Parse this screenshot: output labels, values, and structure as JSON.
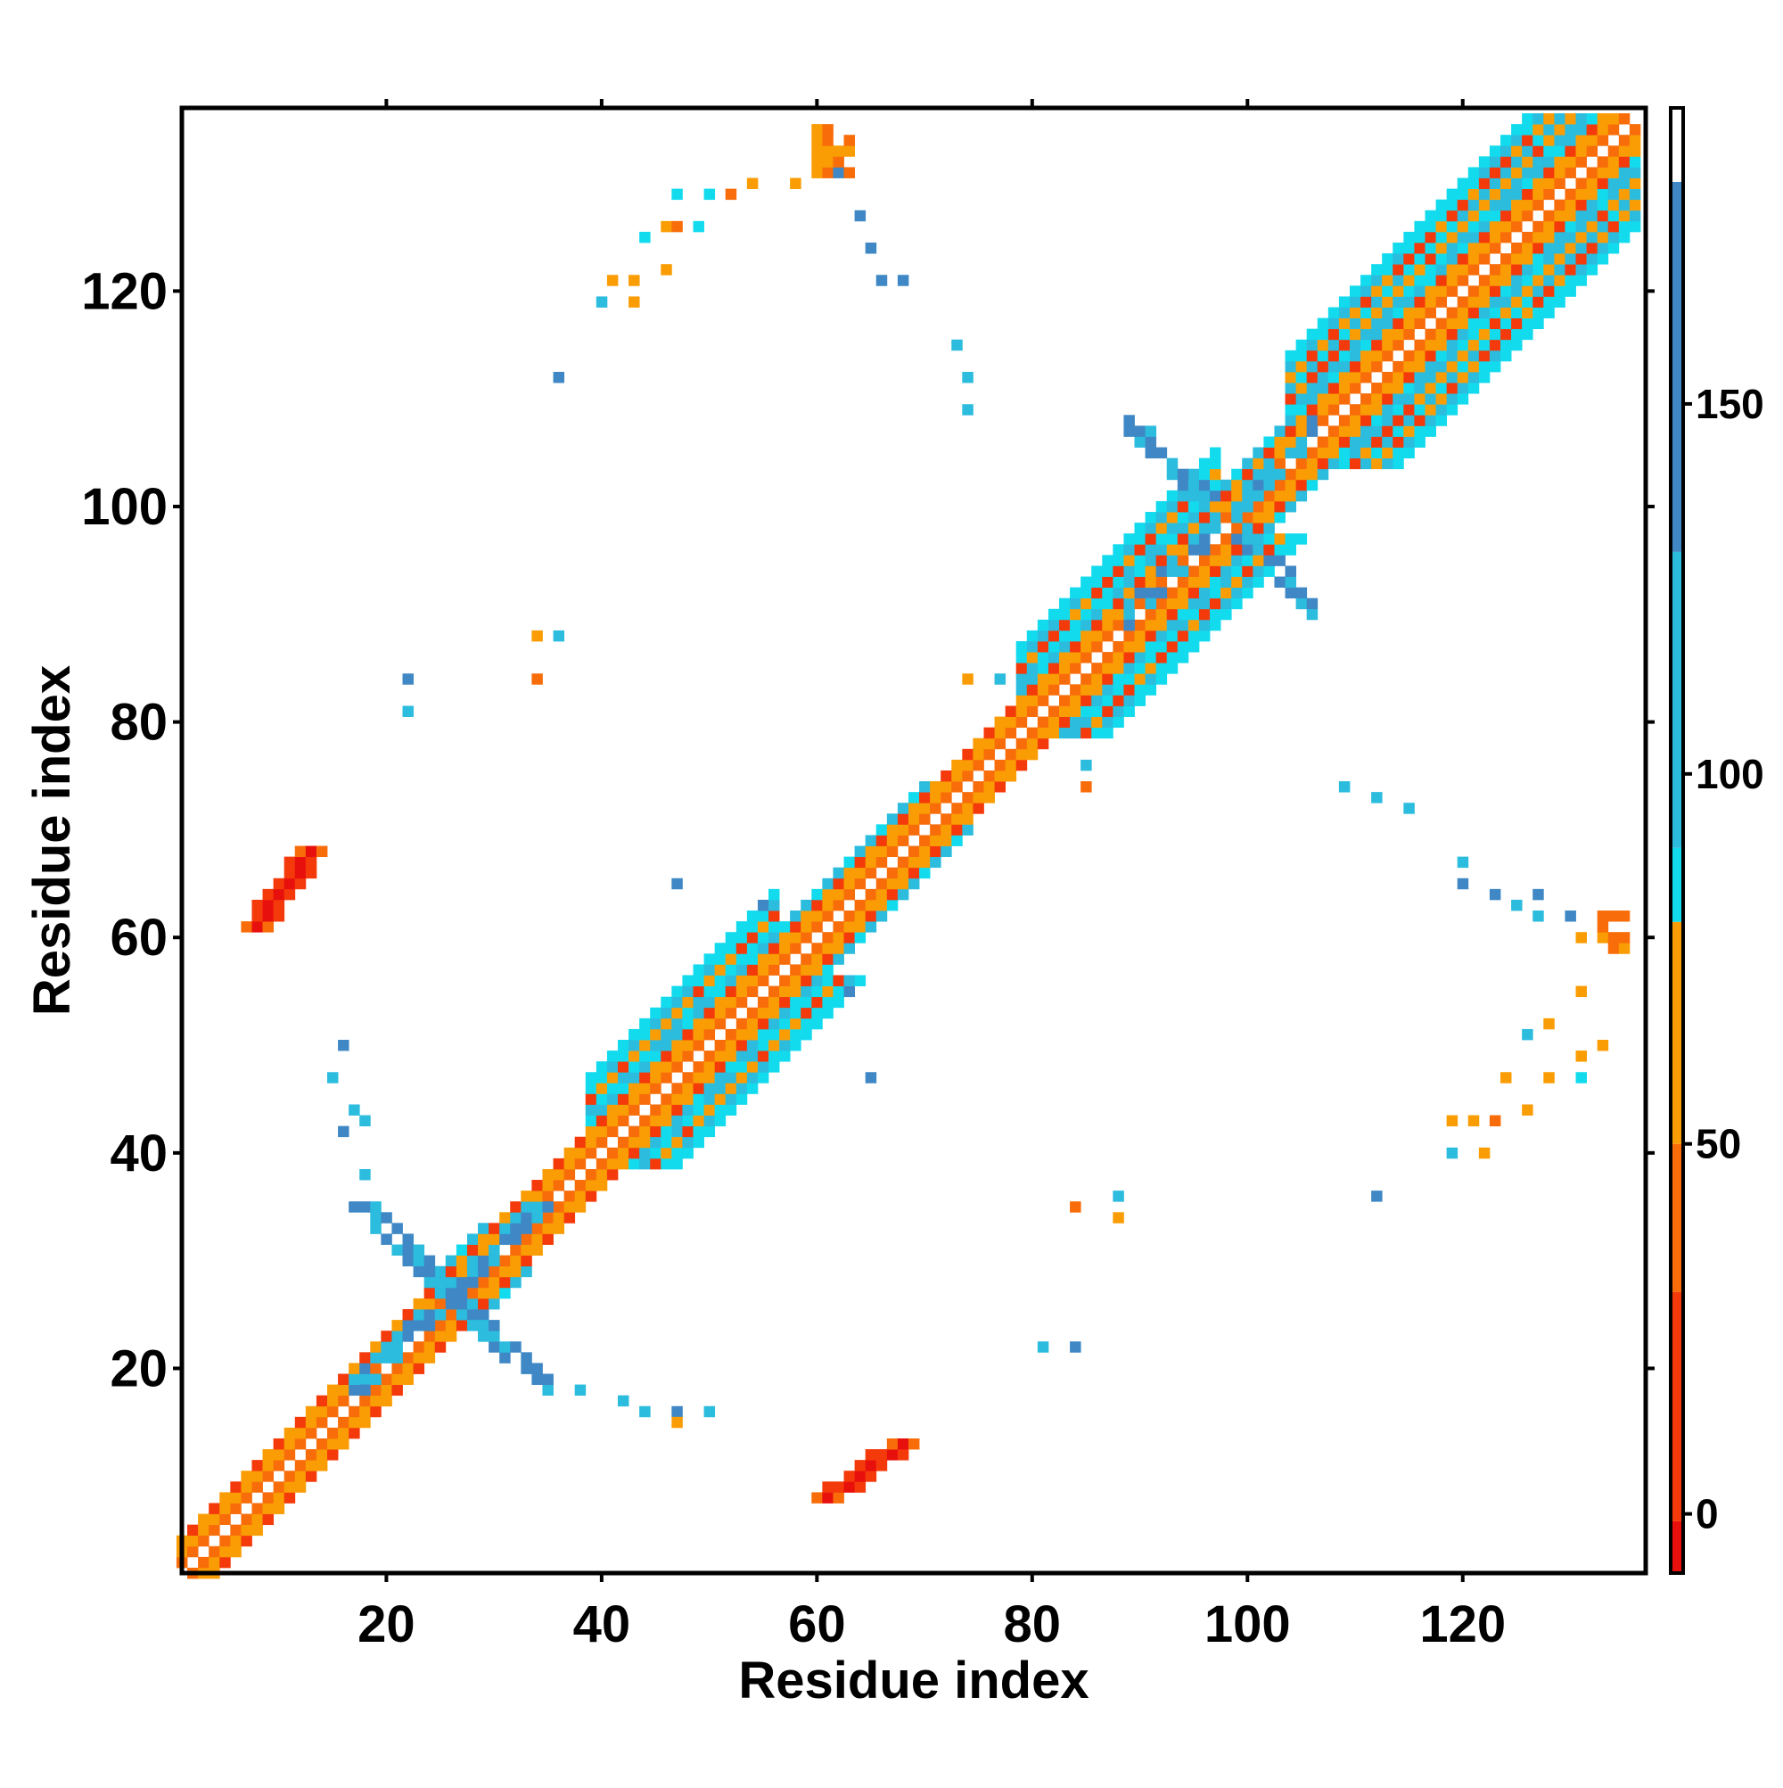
{
  "chart_data": {
    "type": "heatmap",
    "title": "",
    "xlabel": "Residue index",
    "ylabel": "Residue index",
    "xlim": [
      1,
      137
    ],
    "ylim": [
      1,
      137
    ],
    "x_ticks": [
      20,
      40,
      60,
      80,
      100,
      120
    ],
    "y_ticks": [
      20,
      40,
      60,
      80,
      100,
      120
    ],
    "grid": false,
    "legend": "colorbar-right",
    "colorbar": {
      "range": [
        -8,
        190
      ],
      "ticks": [
        0,
        50,
        100,
        150
      ],
      "bands": [
        {
          "from": -8,
          "to": -1,
          "color": "#e8100c"
        },
        {
          "from": -1,
          "to": 30,
          "color": "#f43a0a"
        },
        {
          "from": 30,
          "to": 50,
          "color": "#f86d0a"
        },
        {
          "from": 50,
          "to": 80,
          "color": "#fa9d05"
        },
        {
          "from": 80,
          "to": 90,
          "color": "#12dbee"
        },
        {
          "from": 90,
          "to": 130,
          "color": "#2bbcde"
        },
        {
          "from": 130,
          "to": 180,
          "color": "#3f88c5"
        },
        {
          "from": 180,
          "to": 190,
          "color": "#ffffff"
        }
      ]
    },
    "diagonal": {
      "min_offset": 1,
      "segments": [
        {
          "from": 1,
          "to": 25,
          "width": 3
        },
        {
          "from": 25,
          "to": 29,
          "width": 4
        },
        {
          "from": 29,
          "to": 39,
          "width": 3
        },
        {
          "from": 39,
          "to": 56,
          "width": 8
        },
        {
          "from": 56,
          "to": 62,
          "width": 4
        },
        {
          "from": 62,
          "to": 70,
          "width": 4
        },
        {
          "from": 70,
          "to": 79,
          "width": 3
        },
        {
          "from": 79,
          "to": 97,
          "width": 8
        },
        {
          "from": 97,
          "to": 104,
          "width": 4
        },
        {
          "from": 104,
          "to": 136,
          "width": 10
        }
      ]
    },
    "clusters": [
      {
        "x": [
          8,
          13
        ],
        "y": [
          61,
          68
        ],
        "value": 15,
        "shape": "band"
      },
      {
        "x": [
          61,
          68
        ],
        "y": [
          8,
          13
        ],
        "value": 15,
        "shape": "band"
      },
      {
        "x": [
          17,
          35
        ],
        "y": [
          18,
          35
        ],
        "value": 120,
        "shape": "cross"
      },
      {
        "x": [
          89,
          106
        ],
        "y": [
          85,
          112
        ],
        "value": 100,
        "shape": "cross"
      },
      {
        "x": [
          60,
          63
        ],
        "y": [
          131,
          135
        ],
        "value": 50,
        "shape": "block"
      },
      {
        "x": [
          133,
          135
        ],
        "y": [
          59,
          62
        ],
        "value": 50,
        "shape": "block"
      }
    ],
    "points": [
      [
        43,
        121,
        60
      ],
      [
        46,
        122,
        75
      ],
      [
        44,
        125,
        85
      ],
      [
        46,
        126,
        70
      ],
      [
        47,
        126,
        40
      ],
      [
        49,
        126,
        85
      ],
      [
        47,
        129,
        80
      ],
      [
        50,
        129,
        85
      ],
      [
        52,
        129,
        40
      ],
      [
        54,
        130,
        50
      ],
      [
        58,
        130,
        60
      ],
      [
        40,
        119,
        95
      ],
      [
        43,
        119,
        65
      ],
      [
        41,
        121,
        60
      ],
      [
        62,
        131,
        135
      ],
      [
        64,
        127,
        135
      ],
      [
        65,
        124,
        130
      ],
      [
        66,
        121,
        150
      ],
      [
        68,
        121,
        135
      ],
      [
        73,
        115,
        100
      ],
      [
        74,
        112,
        110
      ],
      [
        74,
        109,
        100
      ],
      [
        36,
        112,
        150
      ],
      [
        120,
        67,
        95
      ],
      [
        120,
        65,
        150
      ],
      [
        123,
        64,
        130
      ],
      [
        125,
        63,
        105
      ],
      [
        127,
        64,
        150
      ],
      [
        127,
        62,
        100
      ],
      [
        130,
        62,
        145
      ],
      [
        131,
        60,
        55
      ],
      [
        131,
        55,
        65
      ],
      [
        128,
        52,
        70
      ],
      [
        126,
        51,
        90
      ],
      [
        128,
        47,
        75
      ],
      [
        124,
        47,
        55
      ],
      [
        121,
        43,
        55
      ],
      [
        119,
        43,
        60
      ],
      [
        123,
        43,
        40
      ],
      [
        126,
        44,
        75
      ],
      [
        119,
        40,
        95
      ],
      [
        122,
        40,
        60
      ],
      [
        131,
        49,
        55
      ],
      [
        131,
        47,
        85
      ],
      [
        133,
        50,
        65
      ],
      [
        109,
        74,
        90
      ],
      [
        112,
        73,
        95
      ],
      [
        115,
        72,
        100
      ],
      [
        34,
        88,
        60
      ],
      [
        36,
        88,
        90
      ],
      [
        34,
        84,
        40
      ],
      [
        22,
        84,
        140
      ],
      [
        22,
        81,
        95
      ],
      [
        74,
        84,
        60
      ],
      [
        77,
        84,
        95
      ],
      [
        85,
        76,
        95
      ],
      [
        85,
        74,
        40
      ],
      [
        47,
        65,
        150
      ],
      [
        55,
        63,
        150
      ],
      [
        63,
        55,
        140
      ],
      [
        65,
        47,
        140
      ],
      [
        84,
        35,
        45
      ],
      [
        88,
        36,
        95
      ],
      [
        88,
        34,
        60
      ],
      [
        81,
        22,
        95
      ],
      [
        84,
        22,
        140
      ],
      [
        112,
        36,
        145
      ],
      [
        38,
        18,
        90
      ],
      [
        42,
        17,
        100
      ],
      [
        44,
        16,
        120
      ],
      [
        47,
        16,
        145
      ],
      [
        50,
        16,
        110
      ],
      [
        47,
        15,
        60
      ],
      [
        16,
        50,
        150
      ],
      [
        15,
        47,
        120
      ],
      [
        17,
        44,
        100
      ],
      [
        16,
        42,
        130
      ],
      [
        18,
        43,
        95
      ],
      [
        18,
        38,
        110
      ]
    ]
  }
}
